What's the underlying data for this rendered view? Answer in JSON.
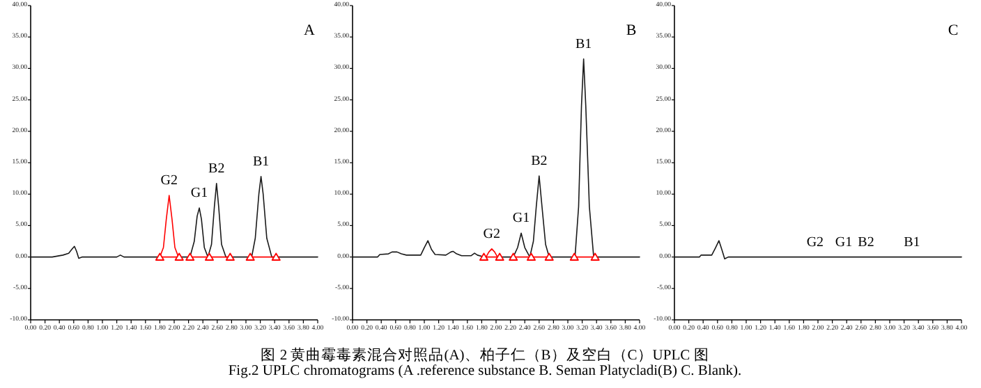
{
  "chart_data": [
    {
      "type": "line",
      "title": "A",
      "xlim": [
        0,
        4
      ],
      "ylim": [
        -10,
        40
      ],
      "xticks": [
        {
          "value": 0,
          "label": "0.00"
        },
        {
          "value": 0.2,
          "label": "0.20"
        },
        {
          "value": 0.4,
          "label": "0.40"
        },
        {
          "value": 0.6,
          "label": "0.60"
        },
        {
          "value": 0.8,
          "label": "0.80"
        },
        {
          "value": 1,
          "label": "1.00"
        },
        {
          "value": 1.2,
          "label": "1.20"
        },
        {
          "value": 1.4,
          "label": "1.40"
        },
        {
          "value": 1.6,
          "label": "1.60"
        },
        {
          "value": 1.8,
          "label": "1.80"
        },
        {
          "value": 2,
          "label": "2.00"
        },
        {
          "value": 2.2,
          "label": "2.20"
        },
        {
          "value": 2.4,
          "label": "2.40"
        },
        {
          "value": 2.6,
          "label": "2.60"
        },
        {
          "value": 2.8,
          "label": "2.80"
        },
        {
          "value": 3,
          "label": "3.00"
        },
        {
          "value": 3.2,
          "label": "3.20"
        },
        {
          "value": 3.4,
          "label": "3.40"
        },
        {
          "value": 3.6,
          "label": "3.60"
        },
        {
          "value": 3.8,
          "label": "3.80"
        },
        {
          "value": 4,
          "label": "4.00"
        }
      ],
      "yticks": [
        {
          "value": -10,
          "label": "-10.00"
        },
        {
          "value": -5,
          "label": "-5.00"
        },
        {
          "value": 0,
          "label": "0.00"
        },
        {
          "value": 5,
          "label": "5.00"
        },
        {
          "value": 10,
          "label": "10.00"
        },
        {
          "value": 15,
          "label": "15.00"
        },
        {
          "value": 20,
          "label": "20.00"
        },
        {
          "value": 25,
          "label": "25.00"
        },
        {
          "value": 30,
          "label": "30.00"
        },
        {
          "value": 35,
          "label": "35.00"
        },
        {
          "value": 40,
          "label": "40.00"
        }
      ],
      "series": [
        {
          "color": "#1a1a1a",
          "x": [
            0,
            0.3,
            0.45,
            0.53,
            0.58,
            0.61,
            0.64,
            0.67,
            0.72,
            1.2,
            1.25,
            1.3,
            1.8
          ],
          "values": [
            0,
            0,
            0.3,
            0.6,
            1.3,
            1.7,
            0.9,
            -0.2,
            0,
            0,
            0.3,
            0,
            0
          ]
        },
        {
          "color": "#ff0000",
          "x": [
            1.8,
            1.85,
            1.89,
            1.93,
            1.97,
            2.01,
            2.06
          ],
          "values": [
            0,
            1.5,
            6,
            9.8,
            6,
            1.5,
            0
          ]
        },
        {
          "color": "#1a1a1a",
          "x": [
            2.06,
            2.22,
            2.28,
            2.32,
            2.35,
            2.38,
            2.42,
            2.47,
            2.52,
            2.56,
            2.59,
            2.62,
            2.66,
            2.72,
            3.08,
            3.13,
            3.18,
            3.21,
            3.24,
            3.29,
            3.36,
            4
          ],
          "values": [
            0,
            0,
            2.5,
            6.5,
            7.8,
            6,
            1.5,
            0,
            2,
            8,
            11.7,
            8,
            2,
            0,
            0,
            3,
            10,
            12.8,
            10,
            3,
            0,
            0
          ]
        },
        {
          "color": "#ff0000",
          "marker": "triangle",
          "x": [
            1.8,
            2.07
          ],
          "values": [
            0,
            0
          ]
        },
        {
          "color": "#ff0000",
          "marker": "triangle",
          "x": [
            2.22,
            2.49,
            2.78
          ],
          "values": [
            0,
            0,
            0
          ]
        },
        {
          "color": "#ff0000",
          "marker": "triangle",
          "x": [
            3.06,
            3.42
          ],
          "values": [
            0,
            0
          ]
        }
      ],
      "annotations": [
        {
          "text": "G2",
          "x": 1.93,
          "y": 9.8
        },
        {
          "text": "G1",
          "x": 2.35,
          "y": 7.8
        },
        {
          "text": "B2",
          "x": 2.59,
          "y": 11.7
        },
        {
          "text": "B1",
          "x": 3.21,
          "y": 12.8
        }
      ]
    },
    {
      "type": "line",
      "title": "B",
      "xlim": [
        0,
        4
      ],
      "ylim": [
        -10,
        40
      ],
      "xticks": [
        {
          "value": 0,
          "label": "0.00"
        },
        {
          "value": 0.2,
          "label": "0.20"
        },
        {
          "value": 0.4,
          "label": "0.40"
        },
        {
          "value": 0.6,
          "label": "0.60"
        },
        {
          "value": 0.8,
          "label": "0.80"
        },
        {
          "value": 1,
          "label": "1.00"
        },
        {
          "value": 1.2,
          "label": "1.20"
        },
        {
          "value": 1.4,
          "label": "1.40"
        },
        {
          "value": 1.6,
          "label": "1.60"
        },
        {
          "value": 1.8,
          "label": "1.80"
        },
        {
          "value": 2,
          "label": "2.00"
        },
        {
          "value": 2.2,
          "label": "2.20"
        },
        {
          "value": 2.4,
          "label": "2.40"
        },
        {
          "value": 2.6,
          "label": "2.60"
        },
        {
          "value": 2.8,
          "label": "2.80"
        },
        {
          "value": 3,
          "label": "3.00"
        },
        {
          "value": 3.2,
          "label": "3.20"
        },
        {
          "value": 3.4,
          "label": "3.40"
        },
        {
          "value": 3.6,
          "label": "3.60"
        },
        {
          "value": 3.8,
          "label": "3.80"
        },
        {
          "value": 4,
          "label": "4.00"
        }
      ],
      "yticks": [
        {
          "value": -10,
          "label": "-10.00"
        },
        {
          "value": -5,
          "label": "-5.00"
        },
        {
          "value": 0,
          "label": "0.00"
        },
        {
          "value": 5,
          "label": "5.00"
        },
        {
          "value": 10,
          "label": "10.00"
        },
        {
          "value": 15,
          "label": "15.00"
        },
        {
          "value": 20,
          "label": "20.00"
        },
        {
          "value": 25,
          "label": "25.00"
        },
        {
          "value": 30,
          "label": "30.00"
        },
        {
          "value": 35,
          "label": "35.00"
        },
        {
          "value": 40,
          "label": "40.00"
        }
      ],
      "series": [
        {
          "color": "#1a1a1a",
          "x": [
            0,
            0.35,
            0.38,
            0.5,
            0.55,
            0.62,
            0.68,
            0.75,
            0.95,
            1,
            1.05,
            1.1,
            1.15,
            1.3,
            1.37,
            1.4,
            1.45,
            1.52,
            1.65,
            1.7,
            1.74,
            1.83
          ],
          "values": [
            0,
            0,
            0.4,
            0.5,
            0.8,
            0.8,
            0.5,
            0.3,
            0.3,
            1.5,
            2.6,
            1.2,
            0.4,
            0.3,
            0.8,
            0.9,
            0.5,
            0.2,
            0.2,
            0.6,
            0.3,
            0
          ]
        },
        {
          "color": "#ff0000",
          "x": [
            1.86,
            1.9,
            1.94,
            1.98,
            2.02
          ],
          "values": [
            0,
            0.8,
            1.3,
            0.8,
            0
          ]
        },
        {
          "color": "#1a1a1a",
          "x": [
            2.05,
            2.24,
            2.3,
            2.35,
            2.4,
            2.47,
            2.52,
            2.56,
            2.6,
            2.64,
            2.69,
            2.74,
            3.1,
            3.15,
            3.19,
            3.22,
            3.25,
            3.3,
            3.36,
            4
          ],
          "values": [
            0,
            0,
            1.5,
            3.8,
            1.5,
            0,
            2.5,
            8,
            12.9,
            8,
            2,
            0,
            0,
            8,
            24,
            31.5,
            24,
            8,
            0,
            0
          ]
        },
        {
          "color": "#ff0000",
          "marker": "triangle",
          "x": [
            1.83,
            2.05
          ],
          "values": [
            0,
            0
          ]
        },
        {
          "color": "#ff0000",
          "marker": "triangle",
          "x": [
            2.24,
            2.49,
            2.74
          ],
          "values": [
            0,
            0,
            0
          ]
        },
        {
          "color": "#ff0000",
          "marker": "triangle",
          "x": [
            3.09,
            3.38
          ],
          "values": [
            0,
            0
          ]
        }
      ],
      "annotations": [
        {
          "text": "G2",
          "x": 1.94,
          "y": 1.3
        },
        {
          "text": "G1",
          "x": 2.35,
          "y": 3.8
        },
        {
          "text": "B2",
          "x": 2.6,
          "y": 12.9
        },
        {
          "text": "B1",
          "x": 3.22,
          "y": 31.5
        },
        "图 2 黄曲霉毒素混合对照品(A)、柏子仁（B）及空白（C）UPLC 图",
        "Fig.2 UPLC chromatograms (A .reference substance B. Seman Platycladi(B) C. Blank)."
      ]
    },
    {
      "type": "line",
      "title": "C",
      "xlim": [
        0,
        4
      ],
      "ylim": [
        -10,
        40
      ],
      "xticks": [
        {
          "value": 0,
          "label": "0.00"
        },
        {
          "value": 0.2,
          "label": "0.20"
        },
        {
          "value": 0.4,
          "label": "0.40"
        },
        {
          "value": 0.6,
          "label": "0.60"
        },
        {
          "value": 0.8,
          "label": "0.80"
        },
        {
          "value": 1,
          "label": "1.00"
        },
        {
          "value": 1.2,
          "label": "1.20"
        },
        {
          "value": 1.4,
          "label": "1.40"
        },
        {
          "value": 1.6,
          "label": "1.60"
        },
        {
          "value": 1.8,
          "label": "1.80"
        },
        {
          "value": 2,
          "label": "2.00"
        },
        {
          "value": 2.2,
          "label": "2.20"
        },
        {
          "value": 2.4,
          "label": "2.40"
        },
        {
          "value": 2.6,
          "label": "2.60"
        },
        {
          "value": 2.8,
          "label": "2.80"
        },
        {
          "value": 3,
          "label": "3.00"
        },
        {
          "value": 3.2,
          "label": "3.20"
        },
        {
          "value": 3.4,
          "label": "3.40"
        },
        {
          "value": 3.6,
          "label": "3.60"
        },
        {
          "value": 3.8,
          "label": "3.80"
        },
        {
          "value": 4,
          "label": "4.00"
        }
      ],
      "yticks": [
        {
          "value": -10,
          "label": "-10.00"
        },
        {
          "value": -5,
          "label": "-5.00"
        },
        {
          "value": 0,
          "label": "0.00"
        },
        {
          "value": 5,
          "label": "5.00"
        },
        {
          "value": 10,
          "label": "10.00"
        },
        {
          "value": 15,
          "label": "15.00"
        },
        {
          "value": 20,
          "label": "20.00"
        },
        {
          "value": 25,
          "label": "25.00"
        },
        {
          "value": 30,
          "label": "30.00"
        },
        {
          "value": 35,
          "label": "35.00"
        },
        {
          "value": 40,
          "label": "40.00"
        }
      ],
      "series": [
        {
          "color": "#1a1a1a",
          "x": [
            0,
            0.35,
            0.37,
            0.52,
            0.57,
            0.62,
            0.66,
            0.7,
            0.75,
            4
          ],
          "values": [
            0,
            0,
            0.3,
            0.3,
            1.4,
            2.6,
            1.2,
            -0.3,
            0,
            0
          ]
        }
      ],
      "annotations": [
        {
          "text": "G2",
          "x": 1.96,
          "y": 0
        },
        {
          "text": "G1",
          "x": 2.36,
          "y": 0
        },
        {
          "text": "B2",
          "x": 2.67,
          "y": 0
        },
        {
          "text": "B1",
          "x": 3.31,
          "y": 0
        }
      ]
    }
  ]
}
